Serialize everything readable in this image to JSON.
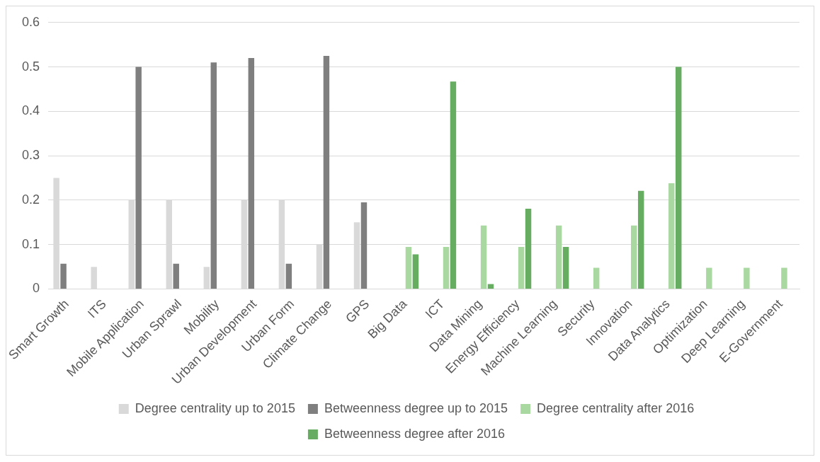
{
  "chart_data": {
    "type": "bar",
    "categories": [
      "Smart Growth",
      "ITS",
      "Mobile Application",
      "Urban Sprawl",
      "Mobility",
      "Urban Development",
      "Urban Form",
      "Climate Change",
      "GPS",
      "Big Data",
      "ICT",
      "Data Mining",
      "Energy Efficiency",
      "Machine Learning",
      "Security",
      "Innovation",
      "Data Analytics",
      "Optimization",
      "Deep Learning",
      "E-Government"
    ],
    "series": [
      {
        "name": "Degree centrality up to 2015",
        "color": "#d9d9d9",
        "values": [
          0.25,
          0.05,
          0.2,
          0.2,
          0.05,
          0.2,
          0.2,
          0.1,
          0.15,
          null,
          null,
          null,
          null,
          null,
          null,
          null,
          null,
          null,
          null,
          null
        ]
      },
      {
        "name": "Betweenness degree up to 2015",
        "color": "#7f7f7f",
        "values": [
          0.057,
          0,
          0.5,
          0.057,
          0.51,
          0.52,
          0.057,
          0.525,
          0.195,
          null,
          null,
          null,
          null,
          null,
          null,
          null,
          null,
          null,
          null,
          null
        ]
      },
      {
        "name": "Degree centrality after 2016",
        "color": "#a9d8a0",
        "values": [
          null,
          null,
          null,
          null,
          null,
          null,
          null,
          null,
          null,
          0.095,
          0.095,
          0.143,
          0.095,
          0.143,
          0.048,
          0.143,
          0.238,
          0.048,
          0.048,
          0.048
        ]
      },
      {
        "name": "Betweenness degree after 2016",
        "color": "#66ad62",
        "values": [
          null,
          null,
          null,
          null,
          null,
          null,
          null,
          null,
          null,
          0.078,
          0.467,
          0.011,
          0.181,
          0.095,
          0,
          0.221,
          0.5,
          0,
          0,
          0
        ]
      }
    ],
    "ylim": [
      0,
      0.6
    ],
    "yticks": [
      0,
      0.1,
      0.2,
      0.3,
      0.4,
      0.5,
      0.6
    ],
    "grid": "y",
    "legend": "bottom"
  }
}
